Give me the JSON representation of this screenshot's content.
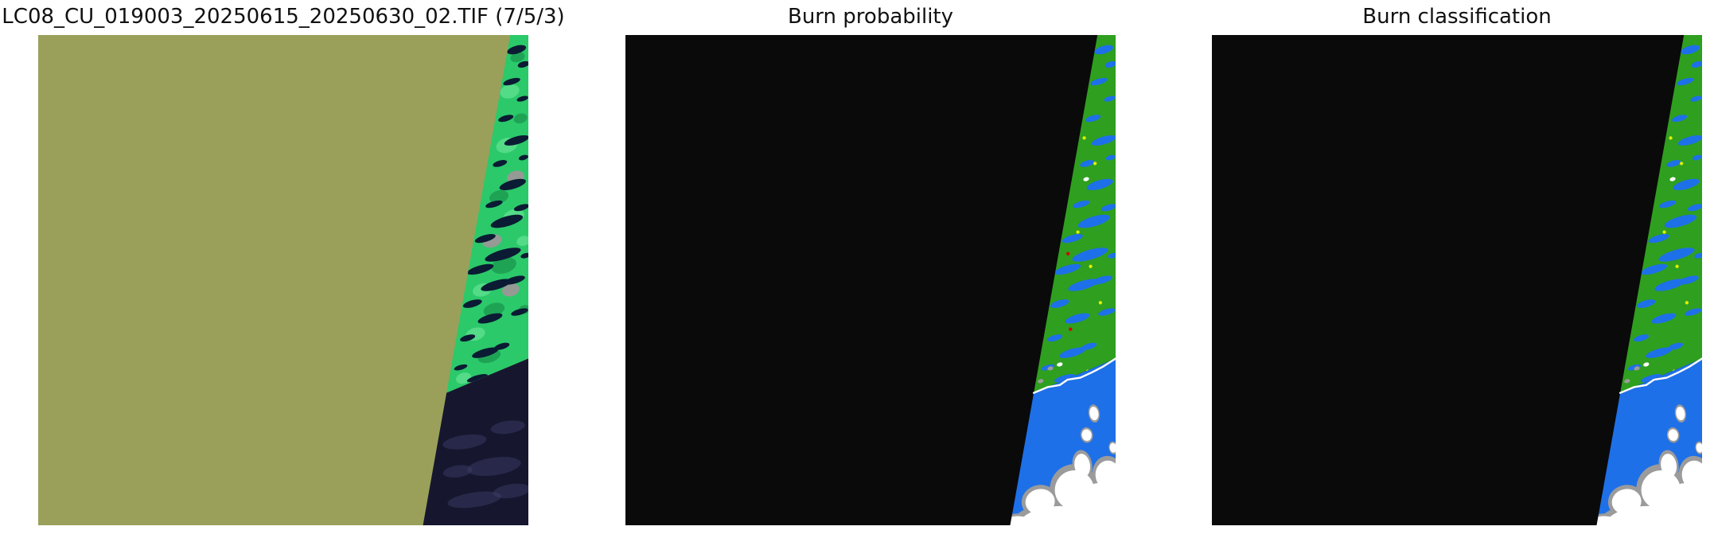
{
  "figure": {
    "background": "#ffffff",
    "title_color": "#111111"
  },
  "panels": [
    {
      "title": "LC08_CU_019003_20250615_20250630_02.TIF (7/5/3)",
      "kind": "satellite",
      "show_red": false
    },
    {
      "title": "Burn probability",
      "kind": "classified",
      "show_red": true
    },
    {
      "title": "Burn classification",
      "kind": "classified",
      "show_red": false
    }
  ],
  "chart_data": [
    {
      "type": "heatmap",
      "title": "LC08_CU_019003_20250615_20250630_02.TIF (7/5/3)",
      "description": "Landsat 8 band 7/5/3 false-color composite: uniform olive haze/cloud area covering most of the tile; bright green vegetated strip with dark lakes along the diagonal scene edge at right; dark navy sea with faint cloud wisps in the bottom-right corner"
    },
    {
      "type": "heatmap",
      "title": "Burn probability",
      "description": "Mostly black (no data); valid diagonal strip at right: green land, blue lakes and sea, white clouds with gray fringes, sparse red and yellow burn-probability pixels"
    },
    {
      "type": "heatmap",
      "title": "Burn classification",
      "description": "Mostly black (no data); valid diagonal strip at right: green unburned land, blue water, white clouds with gray fringes"
    }
  ],
  "colors": {
    "olive": "#9aa05a",
    "sat_green": "#2bc96a",
    "sat_green_dark": "#168a47",
    "sat_green_light": "#6fe79b",
    "sat_pink": "#a8929c",
    "lake_navy": "#0b1b33",
    "sea_navy": "#16172f",
    "sea_wisp": "#42436f",
    "cls_black": "#0a0a0a",
    "cls_green": "#2f9f1f",
    "cls_blue": "#1e70e8",
    "cloud_white": "#ffffff",
    "cloud_gray": "#9b9b9b",
    "dot_red": "#d40000",
    "dot_yellow": "#dff000"
  },
  "scene": {
    "geometry": {
      "diag_top_fx": 0.963,
      "diag_bot_fx": 0.785,
      "coast_meet_fy": 0.73,
      "coast_right_fy": 0.66
    },
    "coastline": [
      [
        0.833,
        0.73
      ],
      [
        0.862,
        0.718
      ],
      [
        0.886,
        0.714
      ],
      [
        0.902,
        0.703
      ],
      [
        0.928,
        0.699
      ],
      [
        0.952,
        0.688
      ],
      [
        0.975,
        0.676
      ],
      [
        1.0,
        0.66
      ]
    ],
    "lakes": [
      [
        0.976,
        0.03,
        0.02,
        0.008
      ],
      [
        0.99,
        0.06,
        0.012,
        0.006
      ],
      [
        0.966,
        0.095,
        0.018,
        0.006
      ],
      [
        0.988,
        0.13,
        0.012,
        0.005
      ],
      [
        0.954,
        0.17,
        0.016,
        0.006
      ],
      [
        0.976,
        0.215,
        0.026,
        0.008
      ],
      [
        0.942,
        0.262,
        0.015,
        0.006
      ],
      [
        0.968,
        0.305,
        0.028,
        0.009
      ],
      [
        0.93,
        0.345,
        0.018,
        0.006
      ],
      [
        0.956,
        0.38,
        0.034,
        0.01
      ],
      [
        0.912,
        0.415,
        0.022,
        0.007
      ],
      [
        0.948,
        0.448,
        0.038,
        0.01
      ],
      [
        0.902,
        0.478,
        0.028,
        0.008
      ],
      [
        0.934,
        0.51,
        0.032,
        0.009
      ],
      [
        0.886,
        0.548,
        0.02,
        0.007
      ],
      [
        0.922,
        0.578,
        0.026,
        0.008
      ],
      [
        0.876,
        0.618,
        0.016,
        0.006
      ],
      [
        0.912,
        0.648,
        0.028,
        0.008
      ],
      [
        0.862,
        0.678,
        0.014,
        0.005
      ],
      [
        0.896,
        0.7,
        0.022,
        0.006
      ],
      [
        0.972,
        0.5,
        0.022,
        0.007
      ],
      [
        0.986,
        0.352,
        0.016,
        0.006
      ],
      [
        0.982,
        0.565,
        0.018,
        0.006
      ],
      [
        0.946,
        0.635,
        0.016,
        0.006
      ],
      [
        0.994,
        0.45,
        0.01,
        0.005
      ],
      [
        0.99,
        0.25,
        0.01,
        0.005
      ]
    ],
    "texture": [
      [
        0.978,
        0.045,
        0.015,
        0.01,
        "d"
      ],
      [
        0.962,
        0.115,
        0.02,
        0.014,
        "l"
      ],
      [
        0.984,
        0.17,
        0.014,
        0.01,
        "d"
      ],
      [
        0.956,
        0.225,
        0.022,
        0.015,
        "l"
      ],
      [
        0.974,
        0.29,
        0.018,
        0.013,
        "p"
      ],
      [
        0.94,
        0.33,
        0.02,
        0.013,
        "d"
      ],
      [
        0.97,
        0.37,
        0.022,
        0.014,
        "l"
      ],
      [
        0.926,
        0.42,
        0.02,
        0.013,
        "p"
      ],
      [
        0.95,
        0.47,
        0.026,
        0.016,
        "d"
      ],
      [
        0.906,
        0.52,
        0.02,
        0.013,
        "l"
      ],
      [
        0.93,
        0.56,
        0.022,
        0.013,
        "d"
      ],
      [
        0.964,
        0.52,
        0.018,
        0.013,
        "p"
      ],
      [
        0.892,
        0.61,
        0.02,
        0.013,
        "l"
      ],
      [
        0.92,
        0.655,
        0.024,
        0.013,
        "d"
      ],
      [
        0.868,
        0.7,
        0.016,
        0.011,
        "l"
      ],
      [
        0.9,
        0.705,
        0.02,
        0.011,
        "p"
      ],
      [
        0.99,
        0.42,
        0.014,
        0.01,
        "l"
      ],
      [
        0.992,
        0.56,
        0.012,
        0.009,
        "d"
      ]
    ],
    "wisps": [
      [
        0.87,
        0.83,
        0.045,
        0.014
      ],
      [
        0.93,
        0.88,
        0.055,
        0.018
      ],
      [
        0.958,
        0.8,
        0.035,
        0.013
      ],
      [
        0.89,
        0.948,
        0.055,
        0.015
      ],
      [
        0.966,
        0.93,
        0.038,
        0.014
      ],
      [
        0.856,
        0.89,
        0.03,
        0.012
      ]
    ],
    "clouds": [
      [
        0.87,
        0.992,
        0.068,
        0.03
      ],
      [
        0.95,
        0.982,
        0.075,
        0.036
      ],
      [
        0.916,
        0.928,
        0.04,
        0.04
      ],
      [
        0.985,
        0.898,
        0.026,
        0.03
      ],
      [
        0.846,
        0.952,
        0.03,
        0.026
      ],
      [
        0.792,
        0.998,
        0.036,
        0.016
      ],
      [
        0.966,
        0.95,
        0.046,
        0.036
      ],
      [
        0.932,
        0.878,
        0.016,
        0.024
      ],
      [
        0.956,
        0.772,
        0.009,
        0.014
      ],
      [
        0.941,
        0.816,
        0.01,
        0.012
      ],
      [
        0.995,
        0.842,
        0.007,
        0.01
      ]
    ],
    "specks": [
      [
        0.867,
        0.68,
        "gray"
      ],
      [
        0.886,
        0.672,
        "white"
      ],
      [
        0.847,
        0.706,
        "gray"
      ],
      [
        0.94,
        0.294,
        "white"
      ]
    ],
    "yellow_dots": [
      [
        0.936,
        0.21
      ],
      [
        0.958,
        0.262
      ],
      [
        0.923,
        0.402
      ],
      [
        0.949,
        0.472
      ],
      [
        0.969,
        0.546
      ],
      [
        0.943,
        0.686
      ]
    ],
    "red_dots": [
      [
        0.903,
        0.446
      ],
      [
        0.908,
        0.6
      ]
    ]
  }
}
